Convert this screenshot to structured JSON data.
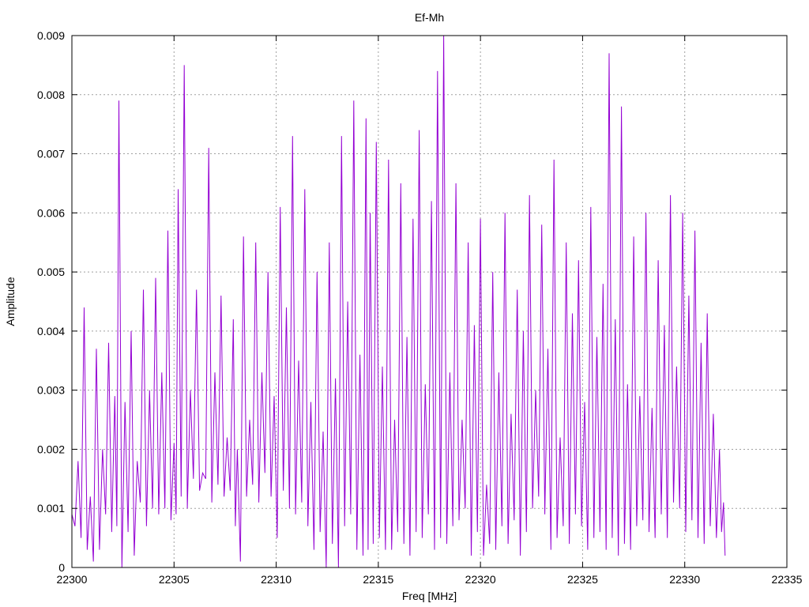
{
  "chart_data": {
    "type": "line",
    "title": "Ef-Mh",
    "xlabel": "Freq [MHz]",
    "ylabel": "Amplitude",
    "xlim": [
      22300,
      22335
    ],
    "ylim": [
      0,
      0.009
    ],
    "x_ticks": [
      22300,
      22305,
      22310,
      22315,
      22320,
      22325,
      22330,
      22335
    ],
    "y_ticks": [
      0,
      0.001,
      0.002,
      0.003,
      0.004,
      0.005,
      0.006,
      0.007,
      0.008,
      0.009
    ],
    "x_tick_labels": [
      "22300",
      "22305",
      "22310",
      "22315",
      "22320",
      "22325",
      "22330",
      "22335"
    ],
    "y_tick_labels": [
      "0",
      "0.001",
      "0.002",
      "0.003",
      "0.004",
      "0.005",
      "0.006",
      "0.007",
      "0.008",
      "0.009"
    ],
    "grid": true,
    "series_color": "#9400d3",
    "series": [
      {
        "x": [
          22300.0,
          22300.3,
          22300.6,
          22300.9,
          22301.2,
          22301.5,
          22301.8,
          22302.1,
          22302.3,
          22302.6,
          22302.9,
          22303.2,
          22303.5,
          22303.8,
          22304.1,
          22304.4,
          22304.7,
          22305.0,
          22305.2,
          22305.5,
          22305.8,
          22306.1,
          22306.4,
          22306.7,
          22307.0,
          22307.3,
          22307.6,
          22307.9,
          22308.1,
          22308.4,
          22308.7,
          22309.0,
          22309.3,
          22309.6,
          22309.9,
          22310.2,
          22310.5,
          22310.8,
          22311.1,
          22311.4,
          22311.7,
          22312.0,
          22312.3,
          22312.6,
          22312.9,
          22313.2,
          22313.5,
          22313.8,
          22314.1,
          22314.4,
          22314.6,
          22314.9,
          22315.2,
          22315.5,
          22315.8,
          22316.1,
          22316.4,
          22316.7,
          22317.0,
          22317.3,
          22317.6,
          22317.9,
          22318.2,
          22318.5,
          22318.8,
          22319.1,
          22319.4,
          22319.7,
          22320.0,
          22320.3,
          22320.6,
          22320.9,
          22321.2,
          22321.5,
          22321.8,
          22322.1,
          22322.4,
          22322.7,
          22323.0,
          22323.3,
          22323.6,
          22323.9,
          22324.2,
          22324.5,
          22324.8,
          22325.1,
          22325.4,
          22325.7,
          22326.0,
          22326.3,
          22326.6,
          22326.9,
          22327.2,
          22327.5,
          22327.8,
          22328.1,
          22328.4,
          22328.7,
          22329.0,
          22329.3,
          22329.6,
          22329.9,
          22330.2,
          22330.5,
          22330.8,
          22331.1,
          22331.4,
          22331.7,
          22331.9
        ],
        "y": [
          0.0009,
          0.0018,
          0.0044,
          0.0012,
          0.0037,
          0.002,
          0.0038,
          0.0029,
          0.0079,
          0.0028,
          0.004,
          0.0018,
          0.0047,
          0.003,
          0.0049,
          0.0033,
          0.0057,
          0.0021,
          0.0064,
          0.0085,
          0.003,
          0.0047,
          0.0016,
          0.0071,
          0.0033,
          0.0046,
          0.0022,
          0.0042,
          0.002,
          0.0056,
          0.0025,
          0.0055,
          0.0033,
          0.005,
          0.0029,
          0.0061,
          0.0044,
          0.0073,
          0.0035,
          0.0064,
          0.0028,
          0.005,
          0.0023,
          0.0055,
          0.0032,
          0.0073,
          0.0045,
          0.0079,
          0.0036,
          0.0076,
          0.006,
          0.0072,
          0.0034,
          0.0069,
          0.0025,
          0.0065,
          0.0039,
          0.0059,
          0.0074,
          0.0031,
          0.0062,
          0.0084,
          0.009,
          0.0033,
          0.0065,
          0.0025,
          0.0055,
          0.0041,
          0.0059,
          0.0014,
          0.005,
          0.0033,
          0.006,
          0.0026,
          0.0047,
          0.004,
          0.0063,
          0.003,
          0.0058,
          0.0037,
          0.0069,
          0.0022,
          0.0055,
          0.0043,
          0.0052,
          0.0028,
          0.0061,
          0.0039,
          0.0048,
          0.0087,
          0.0042,
          0.0078,
          0.0031,
          0.0056,
          0.0029,
          0.006,
          0.0027,
          0.0052,
          0.0041,
          0.0063,
          0.0034,
          0.006,
          0.0046,
          0.0057,
          0.0038,
          0.0043,
          0.0026,
          0.002,
          0.0011
        ],
        "low": [
          0.0007,
          0.0005,
          0.0003,
          0.0001,
          0.0003,
          0.0009,
          0.0006,
          0.0007,
          0.0,
          0.0006,
          0.0002,
          0.0011,
          0.0007,
          0.001,
          0.0009,
          0.001,
          0.0008,
          0.0009,
          0.0012,
          0.001,
          0.0015,
          0.0013,
          0.0015,
          0.0011,
          0.0014,
          0.0012,
          0.0013,
          0.0007,
          0.0001,
          0.0012,
          0.0014,
          0.0011,
          0.0016,
          0.0012,
          0.0005,
          0.0013,
          0.001,
          0.0009,
          0.0011,
          0.0007,
          0.0003,
          0.0006,
          0.0,
          0.0004,
          0.0,
          0.0007,
          0.0009,
          0.0003,
          0.0002,
          0.0003,
          0.0004,
          0.0005,
          0.0003,
          0.0003,
          0.0006,
          0.0004,
          0.0002,
          0.0006,
          0.0005,
          0.0009,
          0.0003,
          0.0005,
          0.0004,
          0.0007,
          0.0008,
          0.001,
          0.0002,
          0.0006,
          0.0002,
          0.0004,
          0.0003,
          0.0007,
          0.0004,
          0.0008,
          0.0002,
          0.0006,
          0.001,
          0.0012,
          0.0009,
          0.0003,
          0.0005,
          0.0007,
          0.0004,
          0.0009,
          0.0007,
          0.0003,
          0.0005,
          0.0006,
          0.0003,
          0.0005,
          0.0002,
          0.0004,
          0.0003,
          0.0007,
          0.0008,
          0.0006,
          0.0005,
          0.0009,
          0.0005,
          0.0011,
          0.001,
          0.0006,
          0.0008,
          0.0005,
          0.0004,
          0.0007,
          0.0005,
          0.0006,
          0.0002
        ]
      }
    ]
  }
}
